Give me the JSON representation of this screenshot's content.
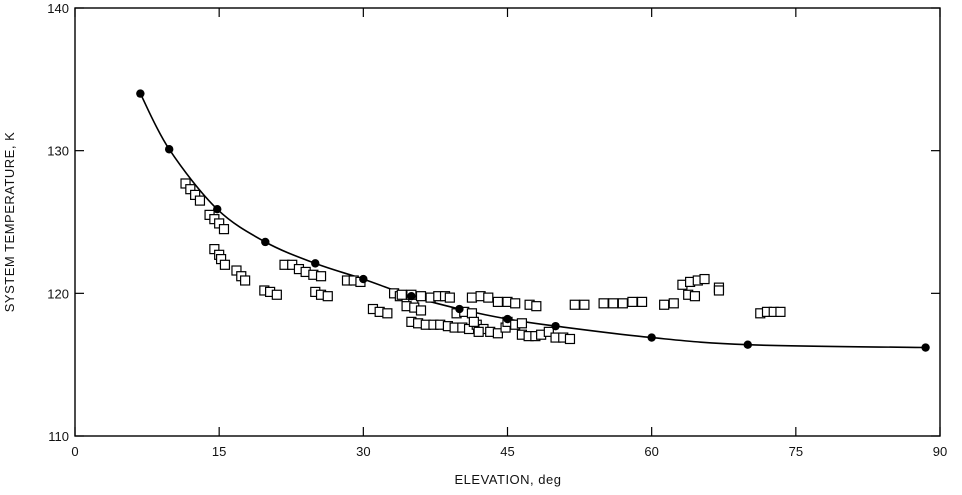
{
  "chart_data": {
    "type": "scatter",
    "title": "",
    "xlabel": "ELEVATION, deg",
    "ylabel": "SYSTEM TEMPERATURE, K",
    "xlim": [
      0,
      90
    ],
    "ylim": [
      110,
      140
    ],
    "x_ticks": [
      "0",
      "15",
      "30",
      "45",
      "60",
      "75",
      "90"
    ],
    "y_ticks": [
      "110",
      "120",
      "130",
      "140"
    ],
    "grid": false,
    "legend": "none",
    "series": [
      {
        "marker": "filled-circle",
        "line": "smooth",
        "color": "#000000",
        "points": [
          [
            6.8,
            134.0
          ],
          [
            9.8,
            130.1
          ],
          [
            14.8,
            125.9
          ],
          [
            19.8,
            123.6
          ],
          [
            25.0,
            122.1
          ],
          [
            30.0,
            121.0
          ],
          [
            35.0,
            119.8
          ],
          [
            40.0,
            118.9
          ],
          [
            45.0,
            118.2
          ],
          [
            50.0,
            117.7
          ],
          [
            60.0,
            116.9
          ],
          [
            70.0,
            116.4
          ],
          [
            88.5,
            116.2
          ]
        ]
      },
      {
        "marker": "open-square",
        "line": "none",
        "color": "#000000",
        "points": [
          [
            11.5,
            127.7
          ],
          [
            12.0,
            127.3
          ],
          [
            12.5,
            126.9
          ],
          [
            13.0,
            126.5
          ],
          [
            14.0,
            125.5
          ],
          [
            14.5,
            125.2
          ],
          [
            15.0,
            124.9
          ],
          [
            15.5,
            124.5
          ],
          [
            14.5,
            123.1
          ],
          [
            15.0,
            122.7
          ],
          [
            15.2,
            122.4
          ],
          [
            15.6,
            122.0
          ],
          [
            16.8,
            121.6
          ],
          [
            17.3,
            121.2
          ],
          [
            17.7,
            120.9
          ],
          [
            19.7,
            120.2
          ],
          [
            20.3,
            120.1
          ],
          [
            21.0,
            119.9
          ],
          [
            21.8,
            122.0
          ],
          [
            22.6,
            122.0
          ],
          [
            23.3,
            121.7
          ],
          [
            24.0,
            121.5
          ],
          [
            24.8,
            121.3
          ],
          [
            25.6,
            121.2
          ],
          [
            25.0,
            120.1
          ],
          [
            25.6,
            119.9
          ],
          [
            26.3,
            119.8
          ],
          [
            28.3,
            120.9
          ],
          [
            29.0,
            120.9
          ],
          [
            29.7,
            120.8
          ],
          [
            31.0,
            118.9
          ],
          [
            31.7,
            118.7
          ],
          [
            32.5,
            118.6
          ],
          [
            33.2,
            120.0
          ],
          [
            33.8,
            119.8
          ],
          [
            34.5,
            119.6
          ],
          [
            35.2,
            119.4
          ],
          [
            34.0,
            119.9
          ],
          [
            35.0,
            119.9
          ],
          [
            36.0,
            119.8
          ],
          [
            37.0,
            119.7
          ],
          [
            37.8,
            119.8
          ],
          [
            38.5,
            119.8
          ],
          [
            39.0,
            119.7
          ],
          [
            34.5,
            119.1
          ],
          [
            35.3,
            119.0
          ],
          [
            36.0,
            118.8
          ],
          [
            35.0,
            118.0
          ],
          [
            35.7,
            117.9
          ],
          [
            36.5,
            117.8
          ],
          [
            37.3,
            117.8
          ],
          [
            38.0,
            117.8
          ],
          [
            38.8,
            117.7
          ],
          [
            39.5,
            117.6
          ],
          [
            40.3,
            117.6
          ],
          [
            41.0,
            117.5
          ],
          [
            39.7,
            118.6
          ],
          [
            40.5,
            118.7
          ],
          [
            41.3,
            118.6
          ],
          [
            41.3,
            119.7
          ],
          [
            42.2,
            119.8
          ],
          [
            43.0,
            119.7
          ],
          [
            41.8,
            117.8
          ],
          [
            42.5,
            117.5
          ],
          [
            43.2,
            117.3
          ],
          [
            44.0,
            117.2
          ],
          [
            44.8,
            117.6
          ],
          [
            41.5,
            118.0
          ],
          [
            42.0,
            117.3
          ],
          [
            44.0,
            119.4
          ],
          [
            45.0,
            119.4
          ],
          [
            45.8,
            119.3
          ],
          [
            45.0,
            118.0
          ],
          [
            45.8,
            117.8
          ],
          [
            46.5,
            117.9
          ],
          [
            46.5,
            117.1
          ],
          [
            47.2,
            117.0
          ],
          [
            47.9,
            117.0
          ],
          [
            48.5,
            117.1
          ],
          [
            49.3,
            117.3
          ],
          [
            50.0,
            116.9
          ],
          [
            50.8,
            116.9
          ],
          [
            51.5,
            116.8
          ],
          [
            47.3,
            119.2
          ],
          [
            48.0,
            119.1
          ],
          [
            52.0,
            119.2
          ],
          [
            53.0,
            119.2
          ],
          [
            55.0,
            119.3
          ],
          [
            56.0,
            119.3
          ],
          [
            57.0,
            119.3
          ],
          [
            58.0,
            119.4
          ],
          [
            59.0,
            119.4
          ],
          [
            61.3,
            119.2
          ],
          [
            62.3,
            119.3
          ],
          [
            63.2,
            120.6
          ],
          [
            64.0,
            120.8
          ],
          [
            64.8,
            120.9
          ],
          [
            65.5,
            121.0
          ],
          [
            63.8,
            119.9
          ],
          [
            64.5,
            119.8
          ],
          [
            67.0,
            120.4
          ],
          [
            67.0,
            120.2
          ],
          [
            71.3,
            118.6
          ],
          [
            72.0,
            118.7
          ],
          [
            72.7,
            118.7
          ],
          [
            73.4,
            118.7
          ]
        ]
      }
    ]
  }
}
